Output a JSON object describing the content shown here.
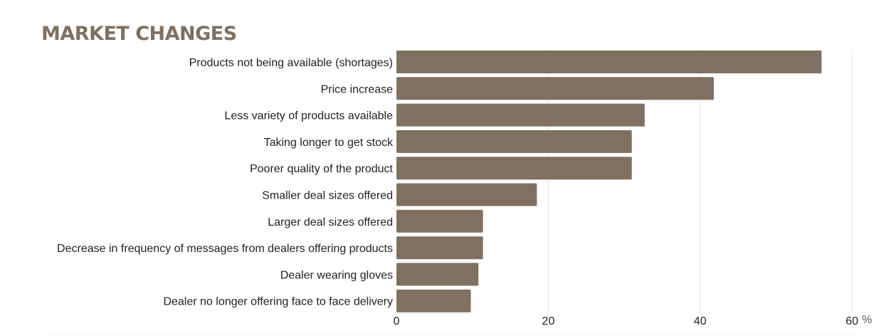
{
  "chart_data": {
    "type": "bar",
    "orientation": "horizontal",
    "title": "MARKET CHANGES",
    "categories": [
      "Products not being available (shortages)",
      "Price increase",
      "Less variety of products available",
      "Taking longer to get stock",
      "Poorer quality of the product",
      "Smaller deal sizes offered",
      "Larger deal sizes offered",
      "Decrease in frequency of messages from dealers offering products",
      "Dealer wearing gloves",
      "Dealer no longer offering face to face delivery"
    ],
    "values": [
      56,
      41.8,
      32.7,
      31,
      31,
      18.5,
      11.4,
      11.4,
      10.8,
      9.8
    ],
    "xlim": [
      0,
      60
    ],
    "xticks": [
      0,
      20,
      40,
      60
    ],
    "xunit": "%",
    "grid": true,
    "bar_color": "#7f7062",
    "grid_color": "#e4e4e4"
  }
}
